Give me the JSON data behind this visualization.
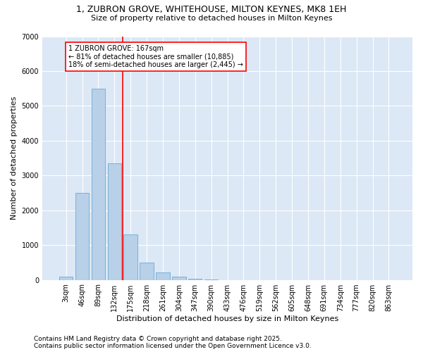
{
  "title_line1": "1, ZUBRON GROVE, WHITEHOUSE, MILTON KEYNES, MK8 1EH",
  "title_line2": "Size of property relative to detached houses in Milton Keynes",
  "xlabel": "Distribution of detached houses by size in Milton Keynes",
  "ylabel": "Number of detached properties",
  "categories": [
    "3sqm",
    "46sqm",
    "89sqm",
    "132sqm",
    "175sqm",
    "218sqm",
    "261sqm",
    "304sqm",
    "347sqm",
    "390sqm",
    "433sqm",
    "476sqm",
    "519sqm",
    "562sqm",
    "605sqm",
    "648sqm",
    "691sqm",
    "734sqm",
    "777sqm",
    "820sqm",
    "863sqm"
  ],
  "values": [
    100,
    2500,
    5500,
    3350,
    1300,
    500,
    220,
    90,
    40,
    10,
    0,
    0,
    0,
    0,
    0,
    0,
    0,
    0,
    0,
    0,
    0
  ],
  "bar_color": "#b8d0e8",
  "bar_edge_color": "#6aaad4",
  "vline_color": "red",
  "vline_x": 3.5,
  "annotation_text": "1 ZUBRON GROVE: 167sqm\n← 81% of detached houses are smaller (10,885)\n18% of semi-detached houses are larger (2,445) →",
  "annotation_fontsize": 7,
  "ylim": [
    0,
    7000
  ],
  "yticks": [
    0,
    1000,
    2000,
    3000,
    4000,
    5000,
    6000,
    7000
  ],
  "background_color": "#dce8f5",
  "grid_color": "white",
  "title_fontsize": 9,
  "subtitle_fontsize": 8,
  "ylabel_fontsize": 8,
  "xlabel_fontsize": 8,
  "tick_fontsize": 7,
  "footer_text": "Contains HM Land Registry data © Crown copyright and database right 2025.\nContains public sector information licensed under the Open Government Licence v3.0.",
  "footer_fontsize": 6.5
}
